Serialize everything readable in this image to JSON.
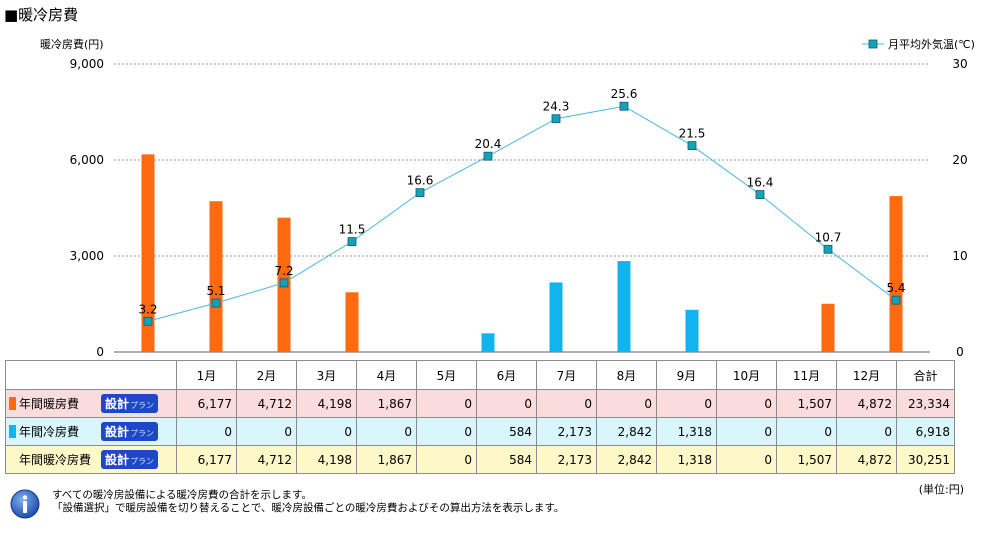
{
  "title": "■暖冷房費",
  "chart_data": {
    "type": "bar",
    "categories": [
      "1月",
      "2月",
      "3月",
      "4月",
      "5月",
      "6月",
      "7月",
      "8月",
      "9月",
      "10月",
      "11月",
      "12月"
    ],
    "ylabel": "暖冷房費(円)",
    "ylim": [
      0,
      9000
    ],
    "yticks": [
      "9,000",
      "6,000",
      "3,000",
      "0"
    ],
    "y2ticks": [
      "30",
      "20",
      "10",
      "0"
    ],
    "y2lim": [
      0,
      30
    ],
    "grid": true,
    "legend_position": "top-right",
    "series": [
      {
        "name": "年間暖房費",
        "color": "#ff6a10",
        "values": [
          6177,
          4712,
          4198,
          1867,
          0,
          0,
          0,
          0,
          0,
          0,
          1507,
          4872
        ]
      },
      {
        "name": "年間冷房費",
        "color": "#12b4f0",
        "values": [
          0,
          0,
          0,
          0,
          0,
          584,
          2173,
          2842,
          1318,
          0,
          0,
          0
        ]
      }
    ],
    "line_series": {
      "name": "月平均外気温(℃)",
      "color": "#49b8e0",
      "marker_color": "#18a0b8",
      "values": [
        3.2,
        5.1,
        7.2,
        11.5,
        16.6,
        20.4,
        24.3,
        25.6,
        21.5,
        16.4,
        10.7,
        5.4
      ],
      "labels": [
        "3.2",
        "5.1",
        "7.2",
        "11.5",
        "16.6",
        "20.4",
        "24.3",
        "25.6",
        "21.5",
        "16.4",
        "10.7",
        "5.4"
      ]
    }
  },
  "table": {
    "headers": [
      "1月",
      "2月",
      "3月",
      "4月",
      "5月",
      "6月",
      "7月",
      "8月",
      "9月",
      "10月",
      "11月",
      "12月",
      "合計"
    ],
    "plan_label": "設計",
    "plan_suffix": "プラン",
    "rows": [
      {
        "key": "heat",
        "label": "年間暖房費",
        "swatch": "#ff6a10",
        "values": [
          "6,177",
          "4,712",
          "4,198",
          "1,867",
          "0",
          "0",
          "0",
          "0",
          "0",
          "0",
          "1,507",
          "4,872",
          "23,334"
        ]
      },
      {
        "key": "cool",
        "label": "年間冷房費",
        "swatch": "#12b4f0",
        "values": [
          "0",
          "0",
          "0",
          "0",
          "0",
          "584",
          "2,173",
          "2,842",
          "1,318",
          "0",
          "0",
          "0",
          "6,918"
        ]
      },
      {
        "key": "total",
        "label": "年間暖冷房費",
        "swatch": "",
        "values": [
          "6,177",
          "4,712",
          "4,198",
          "1,867",
          "0",
          "584",
          "2,173",
          "2,842",
          "1,318",
          "0",
          "1,507",
          "4,872",
          "30,251"
        ]
      }
    ]
  },
  "unit": "(単位:円)",
  "notes": [
    "すべての暖冷房設備による暖冷房費の合計を示します。",
    "「設備選択」で暖房設備を切り替えることで、暖冷房設備ごとの暖冷房費およびその算出方法を表示します。"
  ]
}
